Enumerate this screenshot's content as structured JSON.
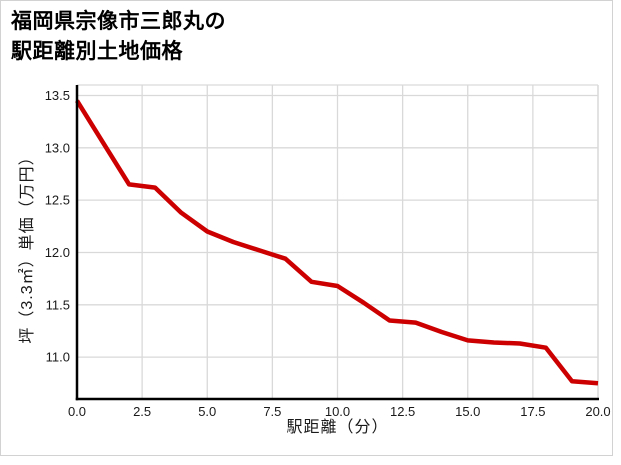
{
  "title": {
    "line1": "福岡県宗像市三郎丸の",
    "line2": "駅距離別土地価格"
  },
  "chart_data": {
    "type": "line",
    "title": "福岡県宗像市三郎丸の駅距離別土地価格",
    "xlabel": "駅距離（分）",
    "ylabel": "坪（3.3㎡）単価（万円）",
    "x": [
      0,
      1,
      2,
      3,
      4,
      5,
      6,
      7,
      8,
      9,
      10,
      11,
      12,
      13,
      14,
      15,
      16,
      17,
      18,
      19,
      20
    ],
    "values": [
      13.45,
      13.05,
      12.65,
      12.62,
      12.38,
      12.2,
      12.1,
      12.02,
      11.94,
      11.72,
      11.68,
      11.52,
      11.35,
      11.33,
      11.24,
      11.16,
      11.14,
      11.13,
      11.09,
      10.77,
      10.75
    ],
    "xlim": [
      0,
      20
    ],
    "ylim": [
      10.6,
      13.6
    ],
    "x_tick_values": [
      0,
      2.5,
      5,
      7.5,
      10,
      12.5,
      15,
      17.5,
      20
    ],
    "x_tick_labels": [
      "0.0",
      "2.5",
      "5.0",
      "7.5",
      "10.0",
      "12.5",
      "15.0",
      "17.5",
      "20.0"
    ],
    "y_tick_values": [
      11.0,
      11.5,
      12.0,
      12.5,
      13.0,
      13.5
    ],
    "y_tick_labels": [
      "11.0",
      "11.5",
      "12.0",
      "12.5",
      "13.0",
      "13.5"
    ],
    "grid": true,
    "legend": false,
    "line_color": "#cc0000",
    "line_width": 4.5,
    "grid_color": "#d9d9d9",
    "axis_color": "#000000",
    "tick_label_color": "#1a1a1a"
  }
}
